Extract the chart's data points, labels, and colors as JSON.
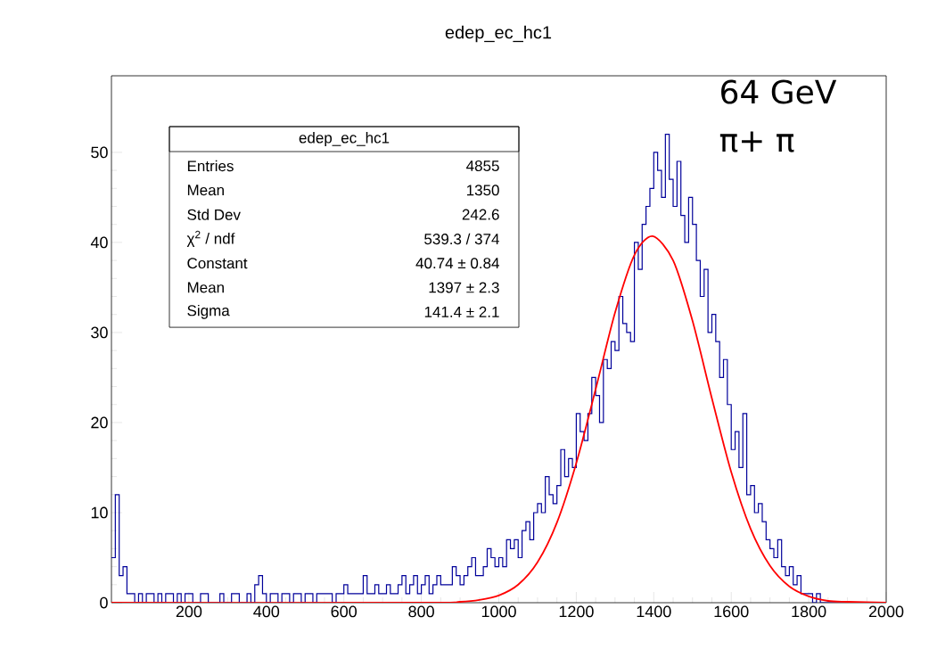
{
  "chart_data": {
    "type": "histogram",
    "title": "edep_ec_hc1",
    "series": [
      {
        "color": "#00009a",
        "bins": [
          0,
          10,
          20,
          30,
          40,
          50,
          60,
          70,
          80,
          90,
          100,
          110,
          120,
          130,
          140,
          150,
          160,
          170,
          180,
          190,
          200,
          210,
          220,
          230,
          240,
          250,
          260,
          270,
          280,
          290,
          300,
          310,
          320,
          330,
          340,
          350,
          360,
          370,
          380,
          390,
          400,
          410,
          420,
          430,
          440,
          450,
          460,
          470,
          480,
          490,
          500,
          510,
          520,
          530,
          540,
          550,
          560,
          570,
          580,
          590,
          600,
          610,
          620,
          630,
          640,
          650,
          660,
          670,
          680,
          690,
          700,
          710,
          720,
          730,
          740,
          750,
          760,
          770,
          780,
          790,
          800,
          810,
          820,
          830,
          840,
          850,
          860,
          870,
          880,
          890,
          900,
          910,
          920,
          930,
          940,
          950,
          960,
          970,
          980,
          990,
          1000,
          1010,
          1020,
          1030,
          1040,
          1050,
          1060,
          1070,
          1080,
          1090,
          1100,
          1110,
          1120,
          1130,
          1140,
          1150,
          1160,
          1170,
          1180,
          1190,
          1200,
          1210,
          1220,
          1230,
          1240,
          1250,
          1260,
          1270,
          1280,
          1290,
          1300,
          1310,
          1320,
          1330,
          1340,
          1350,
          1360,
          1370,
          1380,
          1390,
          1400,
          1410,
          1420,
          1430,
          1440,
          1450,
          1460,
          1470,
          1480,
          1490,
          1500,
          1510,
          1520,
          1530,
          1540,
          1550,
          1560,
          1570,
          1580,
          1590,
          1600,
          1610,
          1620,
          1630,
          1640,
          1650,
          1660,
          1670,
          1680,
          1690,
          1700,
          1710,
          1720,
          1730,
          1740,
          1750,
          1760,
          1770,
          1780,
          1790,
          1800,
          1810,
          1820,
          1830,
          1840,
          1850,
          1860,
          1870,
          1880,
          1890,
          1900,
          1910,
          1920,
          1930,
          1940,
          1950,
          1960,
          1970,
          1980,
          1990,
          2000
        ],
        "values": [
          5,
          12,
          3,
          4,
          1,
          1,
          0,
          1,
          0,
          1,
          1,
          0,
          1,
          0,
          1,
          1,
          0,
          1,
          0,
          1,
          1,
          0,
          0,
          1,
          1,
          0,
          0,
          0,
          1,
          0,
          0,
          1,
          1,
          0,
          0,
          1,
          0,
          2,
          3,
          1,
          0,
          1,
          1,
          0,
          1,
          1,
          0,
          1,
          1,
          0,
          1,
          1,
          0,
          1,
          1,
          1,
          1,
          0,
          1,
          1,
          2,
          1,
          1,
          1,
          1,
          3,
          1,
          1,
          2,
          1,
          1,
          2,
          1,
          1,
          2,
          3,
          1,
          2,
          3,
          1,
          2,
          3,
          1,
          2,
          3,
          2,
          2,
          2,
          4,
          3,
          2,
          3,
          4,
          5,
          3,
          3,
          4,
          6,
          5,
          4,
          5,
          4,
          7,
          6,
          7,
          5,
          8,
          9,
          7,
          10,
          11,
          10,
          14,
          12,
          11,
          13,
          17,
          14,
          16,
          15,
          21,
          19,
          18,
          21,
          25,
          23,
          20,
          27,
          26,
          29,
          28,
          34,
          31,
          30,
          29,
          40,
          37,
          42,
          44,
          46,
          50,
          48,
          45,
          52,
          47,
          44,
          49,
          43,
          40,
          45,
          42,
          38,
          34,
          37,
          30,
          32,
          29,
          25,
          27,
          22,
          17,
          19,
          15,
          21,
          12,
          13,
          10,
          11,
          9,
          7,
          6,
          5,
          7,
          4,
          3,
          4,
          2,
          3,
          1,
          1,
          1,
          0,
          1,
          0,
          0,
          0,
          0,
          0,
          0,
          0,
          0,
          0,
          0,
          0,
          0,
          0,
          0,
          0,
          0,
          0
        ]
      },
      {
        "type": "line",
        "color": "#ff0000",
        "x": [
          0,
          800,
          900,
          950,
          1000,
          1050,
          1100,
          1150,
          1200,
          1250,
          1300,
          1350,
          1397,
          1450,
          1500,
          1550,
          1600,
          1650,
          1700,
          1750,
          1800,
          1850,
          1900,
          2000
        ],
        "values": [
          0,
          0,
          0.1,
          0.3,
          0.8,
          2.0,
          4.5,
          8.9,
          15.5,
          23.7,
          32.2,
          38.6,
          40.7,
          38.0,
          31.3,
          22.7,
          14.5,
          8.2,
          4.1,
          1.8,
          0.7,
          0.2,
          0.1,
          0
        ]
      }
    ],
    "xlim": [
      0,
      2000
    ],
    "ylim": [
      0,
      58.5
    ],
    "xticks": [
      200,
      400,
      600,
      800,
      1000,
      1200,
      1400,
      1600,
      1800,
      2000
    ],
    "yticks": [
      0,
      10,
      20,
      30,
      40,
      50
    ],
    "grid": false,
    "annotations": [
      "edep_ec_hc1",
      "Entries",
      "4855",
      "Mean",
      "1350",
      "Std Dev",
      "242.6",
      "χ$^{2}$ / ndf",
      "539.3 / 374",
      "Constant",
      "40.74 ± 0.84",
      "Mean",
      "1397 ± 2.3",
      "Sigma",
      "141.4 ± 2.1",
      "64 GeV",
      "π+ π"
    ]
  }
}
